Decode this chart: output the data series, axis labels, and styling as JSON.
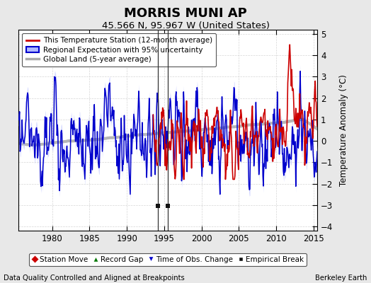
{
  "title": "MORRIS MUNI AP",
  "subtitle": "45.566 N, 95.967 W (United States)",
  "ylabel": "Temperature Anomaly (°C)",
  "xlabel_left": "Data Quality Controlled and Aligned at Breakpoints",
  "xlabel_right": "Berkeley Earth",
  "ylim": [
    -4.2,
    5.2
  ],
  "xlim": [
    1975.5,
    2015.5
  ],
  "xticks": [
    1980,
    1985,
    1990,
    1995,
    2000,
    2005,
    2010,
    2015
  ],
  "yticks": [
    -4,
    -3,
    -2,
    -1,
    0,
    1,
    2,
    3,
    4,
    5
  ],
  "background_color": "#e8e8e8",
  "plot_bg_color": "#ffffff",
  "red_color": "#cc0000",
  "blue_color": "#0000cc",
  "blue_fill_color": "#b0b8ff",
  "gray_color": "#aaaaaa",
  "marker_colors": {
    "station_move": "#cc0000",
    "record_gap": "#007700",
    "time_obs": "#0000cc",
    "empirical": "#111111"
  },
  "empirical_breaks": [
    1994.2,
    1995.5
  ],
  "vlines": [
    1994.2,
    1995.5
  ],
  "legend_fontsize": 7.5,
  "tick_labelsize": 8.5,
  "title_fontsize": 13,
  "subtitle_fontsize": 9.5
}
